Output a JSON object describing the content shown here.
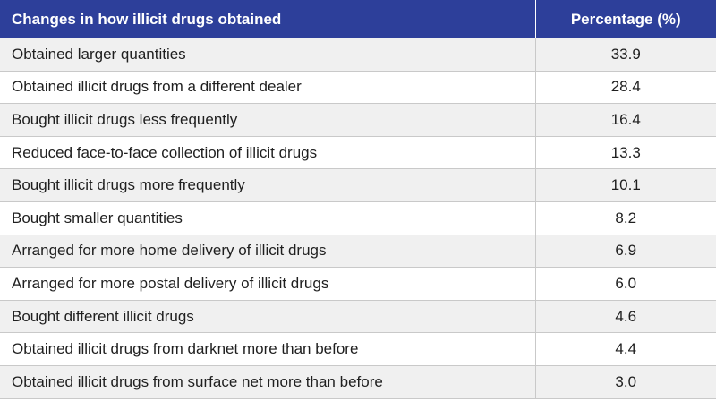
{
  "chart_data": {
    "type": "table",
    "columns": [
      "Changes in how illicit drugs obtained",
      "Percentage (%)"
    ],
    "rows": [
      {
        "label": "Obtained larger quantities",
        "value": "33.9"
      },
      {
        "label": "Obtained illicit drugs from a different dealer",
        "value": "28.4"
      },
      {
        "label": "Bought illicit drugs less frequently",
        "value": "16.4"
      },
      {
        "label": "Reduced face-to-face collection of illicit drugs",
        "value": "13.3"
      },
      {
        "label": "Bought illicit drugs more frequently",
        "value": "10.1"
      },
      {
        "label": "Bought smaller quantities",
        "value": "8.2"
      },
      {
        "label": "Arranged for more home delivery of illicit drugs",
        "value": "6.9"
      },
      {
        "label": "Arranged for more postal delivery of illicit drugs",
        "value": "6.0"
      },
      {
        "label": "Bought different illicit drugs",
        "value": "4.6"
      },
      {
        "label": "Obtained illicit drugs from darknet more than before",
        "value": "4.4"
      },
      {
        "label": "Obtained illicit drugs from surface net more than before",
        "value": "3.0"
      }
    ]
  },
  "colors": {
    "header_bg": "#2d3f9a",
    "header_text": "#ffffff",
    "alt_row_bg": "#f0f0f0",
    "row_bg": "#ffffff",
    "grid": "#c9c9c9"
  }
}
